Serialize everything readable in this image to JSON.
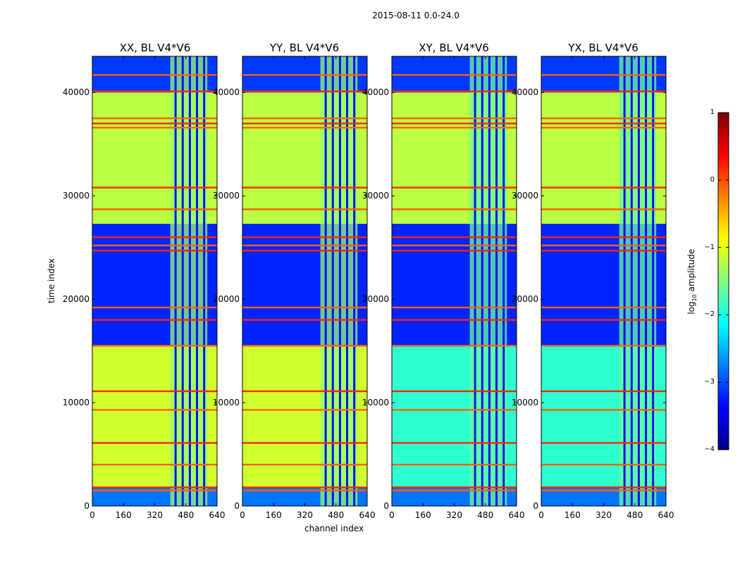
{
  "figure": {
    "suptitle": "2015-08-11 0.0-24.0",
    "ylabel": "time index",
    "xlabel": "channel index",
    "colorbar_label_prefix": "log",
    "colorbar_label_sub": "10",
    "colorbar_label_suffix": " amplitude"
  },
  "chart_data": {
    "type": "heatmap",
    "colormap": "jet",
    "panels": [
      {
        "title": "XX, BL V4*V6",
        "bright": true
      },
      {
        "title": "YY, BL V4*V6",
        "bright": true
      },
      {
        "title": "XY, BL V4*V6",
        "bright": false
      },
      {
        "title": "YX, BL V4*V6",
        "bright": false
      }
    ],
    "x": {
      "label": "channel index",
      "range": [
        0,
        640
      ],
      "ticks": [
        0,
        160,
        320,
        480,
        640
      ],
      "tick_labels": [
        "0",
        "160",
        "320",
        "480",
        "640"
      ]
    },
    "y": {
      "label": "time index",
      "range": [
        0,
        43500
      ],
      "ticks": [
        0,
        10000,
        20000,
        30000,
        40000
      ],
      "tick_labels": [
        "0",
        "10000",
        "20000",
        "30000",
        "40000"
      ]
    },
    "colorbar": {
      "range": [
        -4,
        1
      ],
      "ticks": [
        1,
        0,
        -1,
        -2,
        -3,
        -4
      ],
      "tick_labels": [
        "1",
        "0",
        "−1",
        "−2",
        "−3",
        "−4"
      ]
    },
    "regions_time": [
      {
        "from": 0,
        "to": 1800,
        "level": -2.8
      },
      {
        "from": 1800,
        "to": 15500,
        "level_bright": -1.1,
        "level_dim": -1.9
      },
      {
        "from": 15500,
        "to": 27300,
        "level": -3.2
      },
      {
        "from": 27300,
        "to": 40000,
        "level": -1.2
      },
      {
        "from": 40000,
        "to": 43500,
        "level": -3.1
      }
    ],
    "rfi_channel_band": [
      400,
      590
    ],
    "rfi_lines_time": [
      1500,
      1800,
      4000,
      6100,
      9300,
      11100,
      15500,
      18000,
      19200,
      24700,
      25200,
      26000,
      28700,
      30800,
      36600,
      37000,
      37500,
      40100,
      41700
    ]
  }
}
